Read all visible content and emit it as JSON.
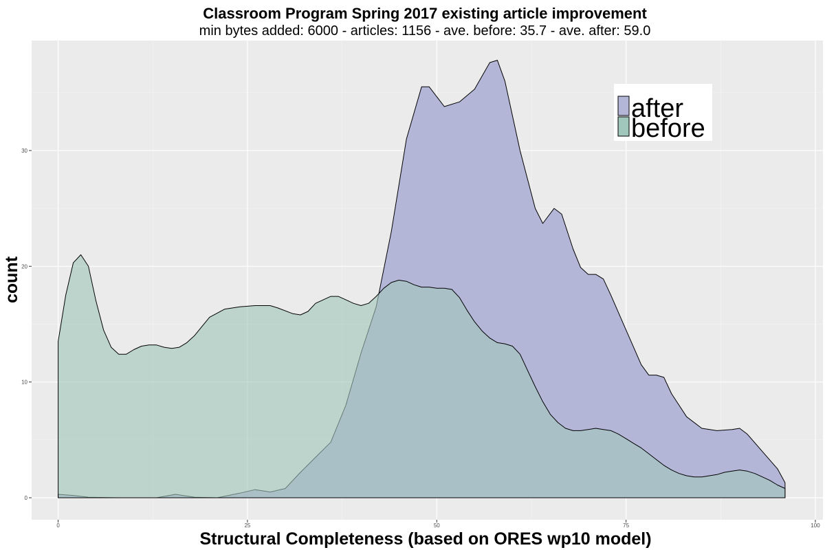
{
  "chart_data": {
    "type": "area",
    "title": "Classroom Program Spring 2017 existing article improvement",
    "subtitle": "min bytes added: 6000 - articles: 1156 - ave. before: 35.7 - ave. after: 59.0",
    "xlabel": "Structural Completeness (based on ORES wp10 model)",
    "ylabel": "count",
    "xlim": [
      -3.5,
      101
    ],
    "ylim": [
      -1.9,
      39.5
    ],
    "x_ticks": [
      0,
      25,
      50,
      75,
      100
    ],
    "x_tick_labels": [
      "0",
      "25",
      "50",
      "75",
      "100"
    ],
    "y_ticks": [
      0,
      10,
      20,
      30
    ],
    "y_tick_labels": [
      "0",
      "10",
      "20",
      "30"
    ],
    "grid": true,
    "legend_position": "top-right",
    "series": [
      {
        "name": "after",
        "color": "#b4b6d8",
        "points": [
          [
            0,
            0.3
          ],
          [
            2,
            0.2
          ],
          [
            4,
            0.05
          ],
          [
            8,
            0
          ],
          [
            13,
            0
          ],
          [
            15.5,
            0.3
          ],
          [
            18,
            0.05
          ],
          [
            21,
            0
          ],
          [
            24,
            0.4
          ],
          [
            26,
            0.7
          ],
          [
            28,
            0.5
          ],
          [
            30,
            0.8
          ],
          [
            32,
            2.2
          ],
          [
            34,
            3.5
          ],
          [
            36,
            4.8
          ],
          [
            38,
            8
          ],
          [
            40,
            12.5
          ],
          [
            42,
            16.5
          ],
          [
            44,
            23
          ],
          [
            46,
            31
          ],
          [
            48,
            35.5
          ],
          [
            49,
            35.5
          ],
          [
            51,
            33.8
          ],
          [
            53,
            34.2
          ],
          [
            55,
            35.3
          ],
          [
            57,
            37.6
          ],
          [
            58,
            37.8
          ],
          [
            59,
            36
          ],
          [
            61,
            30
          ],
          [
            63,
            25
          ],
          [
            64,
            23.7
          ],
          [
            65.5,
            25
          ],
          [
            66.5,
            24.5
          ],
          [
            68,
            21.5
          ],
          [
            69,
            19.9
          ],
          [
            70,
            19.3
          ],
          [
            71,
            19.3
          ],
          [
            72,
            18.9
          ],
          [
            73,
            17.5
          ],
          [
            75,
            14.5
          ],
          [
            77,
            11.5
          ],
          [
            78,
            10.6
          ],
          [
            79,
            10.6
          ],
          [
            80,
            10.4
          ],
          [
            81,
            9
          ],
          [
            83,
            7
          ],
          [
            85,
            6
          ],
          [
            87,
            5.8
          ],
          [
            89,
            5.9
          ],
          [
            90,
            6
          ],
          [
            91,
            5.5
          ],
          [
            93,
            4
          ],
          [
            95,
            2.5
          ],
          [
            96,
            1.3
          ]
        ]
      },
      {
        "name": "before",
        "color": "#a1c7bc",
        "points": [
          [
            0,
            13.5
          ],
          [
            1,
            17.5
          ],
          [
            2,
            20.3
          ],
          [
            3,
            21
          ],
          [
            4,
            20
          ],
          [
            5,
            17
          ],
          [
            6,
            14.5
          ],
          [
            7,
            13
          ],
          [
            8,
            12.4
          ],
          [
            9,
            12.4
          ],
          [
            10,
            12.8
          ],
          [
            11,
            13.1
          ],
          [
            12,
            13.2
          ],
          [
            13,
            13.2
          ],
          [
            14,
            13
          ],
          [
            15,
            12.9
          ],
          [
            16,
            13
          ],
          [
            17,
            13.4
          ],
          [
            18,
            14
          ],
          [
            19,
            14.8
          ],
          [
            20,
            15.6
          ],
          [
            22,
            16.3
          ],
          [
            24,
            16.5
          ],
          [
            26,
            16.6
          ],
          [
            28,
            16.6
          ],
          [
            29,
            16.4
          ],
          [
            31,
            15.9
          ],
          [
            32,
            15.8
          ],
          [
            33,
            16.1
          ],
          [
            34,
            16.8
          ],
          [
            36,
            17.4
          ],
          [
            37,
            17.4
          ],
          [
            38,
            17.1
          ],
          [
            39,
            16.8
          ],
          [
            40,
            16.6
          ],
          [
            41,
            16.8
          ],
          [
            42,
            17.4
          ],
          [
            43,
            18.1
          ],
          [
            44,
            18.6
          ],
          [
            45,
            18.8
          ],
          [
            46,
            18.7
          ],
          [
            47,
            18.4
          ],
          [
            48,
            18.2
          ],
          [
            49,
            18.2
          ],
          [
            50,
            18.1
          ],
          [
            51,
            18.1
          ],
          [
            52,
            18
          ],
          [
            53,
            17.3
          ],
          [
            54,
            16.2
          ],
          [
            55,
            15.2
          ],
          [
            56,
            14.4
          ],
          [
            57,
            13.8
          ],
          [
            58,
            13.4
          ],
          [
            59,
            13.3
          ],
          [
            60,
            13.1
          ],
          [
            61,
            12.4
          ],
          [
            62,
            11
          ],
          [
            63,
            9.6
          ],
          [
            64,
            8.3
          ],
          [
            65,
            7.2
          ],
          [
            66,
            6.5
          ],
          [
            67,
            6
          ],
          [
            68,
            5.8
          ],
          [
            69,
            5.8
          ],
          [
            70,
            5.9
          ],
          [
            71,
            6
          ],
          [
            72,
            5.9
          ],
          [
            73,
            5.8
          ],
          [
            74,
            5.5
          ],
          [
            75,
            5.1
          ],
          [
            76,
            4.7
          ],
          [
            77,
            4.3
          ],
          [
            78,
            3.8
          ],
          [
            79,
            3.3
          ],
          [
            80,
            2.8
          ],
          [
            81,
            2.4
          ],
          [
            82,
            2.1
          ],
          [
            83,
            1.9
          ],
          [
            84,
            1.8
          ],
          [
            85,
            1.8
          ],
          [
            86,
            1.9
          ],
          [
            87,
            2
          ],
          [
            88,
            2.2
          ],
          [
            89,
            2.3
          ],
          [
            90,
            2.4
          ],
          [
            91,
            2.3
          ],
          [
            92,
            2.1
          ],
          [
            93,
            1.8
          ],
          [
            94,
            1.5
          ],
          [
            95,
            1.1
          ],
          [
            96,
            0.8
          ]
        ]
      }
    ]
  }
}
